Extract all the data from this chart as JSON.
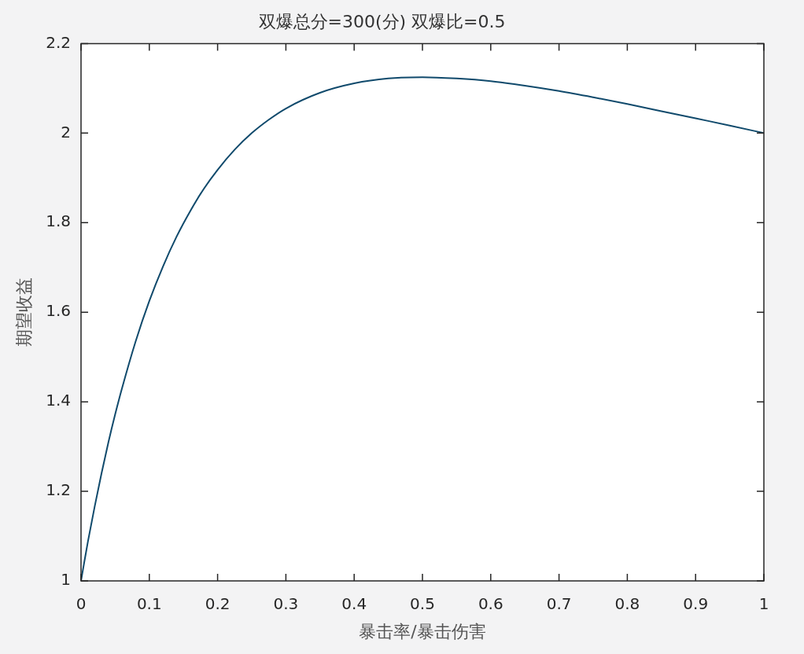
{
  "chart_data": {
    "type": "line",
    "title": "双爆总分=300(分) 双爆比=0.5",
    "xlabel": "暴击率/暴击伤害",
    "ylabel": "期望收益",
    "x": [
      0,
      0.005,
      0.01,
      0.02,
      0.03,
      0.04,
      0.05,
      0.06,
      0.08,
      0.1,
      0.12,
      0.14,
      0.16,
      0.18,
      0.2,
      0.225,
      0.25,
      0.275,
      0.3,
      0.35,
      0.4,
      0.45,
      0.5,
      0.55,
      0.6,
      0.65,
      0.7,
      0.75,
      0.8,
      0.85,
      0.9,
      0.95,
      1
    ],
    "series": [
      {
        "color": "#104a6c",
        "values": [
          1,
          1.044,
          1.087,
          1.166,
          1.24,
          1.309,
          1.372,
          1.43,
          1.535,
          1.625,
          1.702,
          1.769,
          1.826,
          1.876,
          1.918,
          1.963,
          2,
          2.03,
          2.055,
          2.09,
          2.111,
          2.122,
          2.125,
          2.122,
          2.116,
          2.106,
          2.094,
          2.08,
          2.065,
          2.049,
          2.033,
          2.017,
          2
        ]
      }
    ],
    "xlim": [
      0,
      1
    ],
    "xticks": [
      0,
      0.1,
      0.2,
      0.3,
      0.4,
      0.5,
      0.6,
      0.7,
      0.8,
      0.9,
      1
    ],
    "ylim": [
      1,
      2.2
    ],
    "yticks": [
      1,
      1.2,
      1.4,
      1.6,
      1.8,
      2,
      2.2
    ]
  }
}
